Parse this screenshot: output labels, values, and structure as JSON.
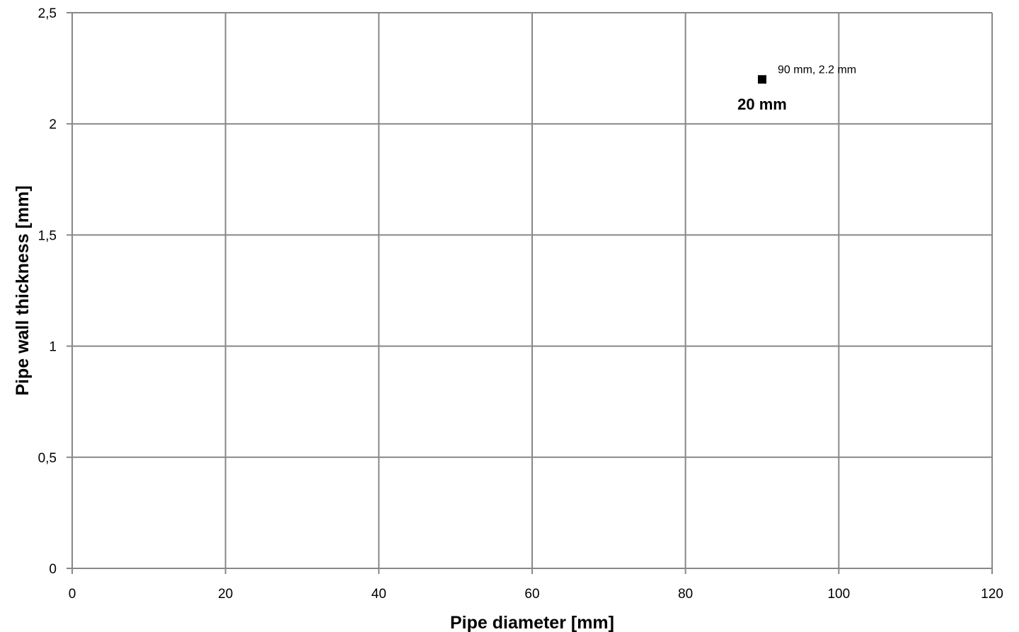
{
  "chart_data": {
    "type": "scatter",
    "title": "",
    "xlabel": "Pipe diameter [mm]",
    "ylabel": "Pipe wall thickness [mm]",
    "xlim": [
      0,
      120
    ],
    "ylim": [
      0,
      2.5
    ],
    "x_ticks": [
      {
        "value": 0,
        "label": "0"
      },
      {
        "value": 20,
        "label": "20"
      },
      {
        "value": 40,
        "label": "40"
      },
      {
        "value": 60,
        "label": "60"
      },
      {
        "value": 80,
        "label": "80"
      },
      {
        "value": 100,
        "label": "100"
      },
      {
        "value": 120,
        "label": "120"
      }
    ],
    "y_ticks": [
      {
        "value": 0,
        "label": "0"
      },
      {
        "value": 0.5,
        "label": "0,5"
      },
      {
        "value": 1,
        "label": "1"
      },
      {
        "value": 1.5,
        "label": "1,5"
      },
      {
        "value": 2,
        "label": "2"
      },
      {
        "value": 2.5,
        "label": "2,5"
      }
    ],
    "grid": true,
    "series": [
      {
        "color": "#000000",
        "marker": "square",
        "points": [
          {
            "x": 90,
            "y": 2.2,
            "label": "90 mm, 2.2 mm"
          }
        ]
      }
    ],
    "annotations": [
      {
        "text": "20 mm",
        "x": 90,
        "y": 2.09
      }
    ],
    "colors": {
      "grid": "#888888",
      "axis": "#888888",
      "marker": "#000000"
    }
  }
}
